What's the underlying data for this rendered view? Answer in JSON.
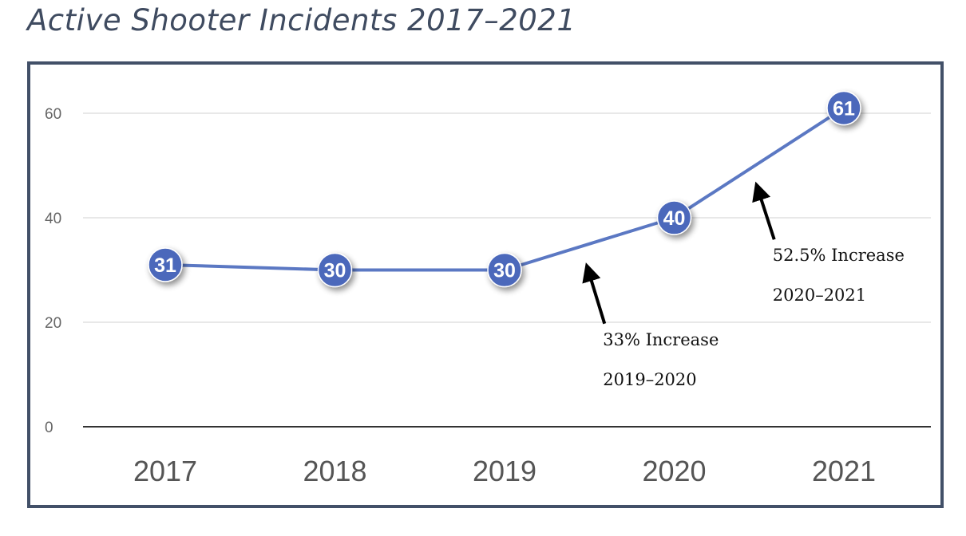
{
  "chart_data": {
    "type": "line",
    "title": "Active Shooter Incidents 2017–2021",
    "categories": [
      "2017",
      "2018",
      "2019",
      "2020",
      "2021"
    ],
    "series": [
      {
        "values": [
          31,
          30,
          30,
          40,
          61
        ]
      }
    ],
    "data_labels": [
      "31",
      "30",
      "30",
      "40",
      "61"
    ],
    "y_ticks": [
      0,
      20,
      40,
      60
    ],
    "y_tick_labels": [
      "0",
      "20",
      "40",
      "60"
    ],
    "ylim": [
      0,
      70
    ],
    "xlabel": "",
    "ylabel": "",
    "grid": true,
    "legend": "none",
    "annotations": [
      {
        "line1": "33% Increase",
        "line2": "2019–2020",
        "between": [
          "2019",
          "2020"
        ]
      },
      {
        "line1": "52.5% Increase",
        "line2": "2020–2021",
        "between": [
          "2020",
          "2021"
        ]
      }
    ],
    "colors": {
      "line": "#5b78c3",
      "marker": "#4c68bb",
      "frame": "#425068",
      "gridline": "#d9d9d9",
      "baseline": "#333333",
      "title": "#3f4b60"
    }
  }
}
